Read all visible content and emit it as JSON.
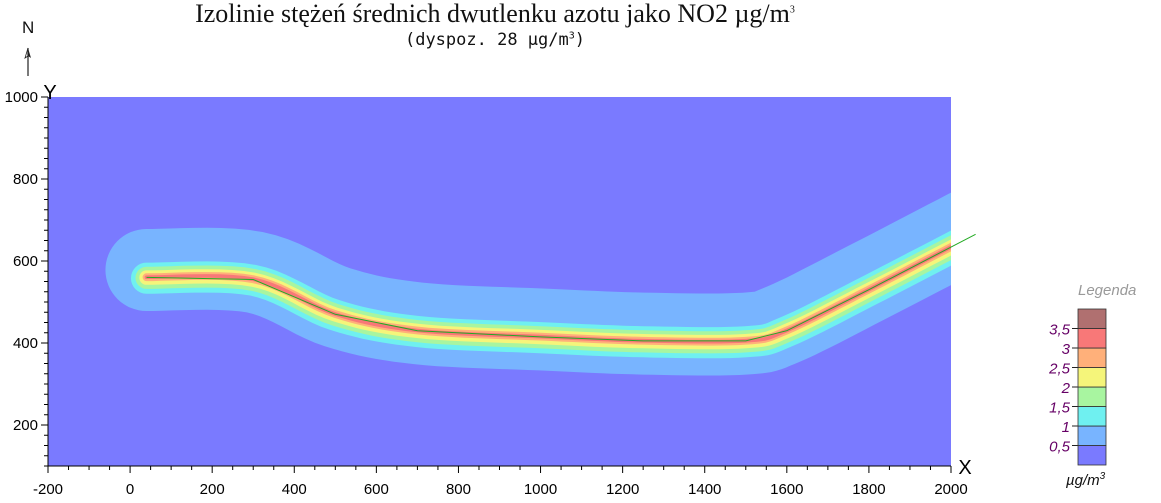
{
  "title": "Izolinie stężeń średnich dwutlenku azotu jako NO2 µg/m",
  "title_sup": "3",
  "subtitle": "(dyspoz. 28 µg/m",
  "subtitle_sup": "3",
  "subtitle_end": ")",
  "north_label": "N",
  "legend": {
    "title": "Legenda",
    "unit": "µg/m",
    "unit_sup": "3",
    "levels": [
      {
        "label": "0,5",
        "color": "#7a7aff"
      },
      {
        "label": "1",
        "color": "#78b4ff"
      },
      {
        "label": "1,5",
        "color": "#6ff0f0"
      },
      {
        "label": "2",
        "color": "#a8f5a0"
      },
      {
        "label": "2,5",
        "color": "#f5f57a"
      },
      {
        "label": "3",
        "color": "#ffb07a"
      },
      {
        "label": "3,5",
        "color": "#f87878"
      },
      {
        "label": "",
        "color": "#b07070"
      }
    ],
    "label_color": "#660066"
  },
  "chart_data": {
    "type": "heatmap",
    "title": "Izolinie stężeń średnich dwutlenku azotu jako NO2 µg/m³",
    "subtitle": "(dyspoz. 28 µg/m³)",
    "xlabel": "X",
    "ylabel": "Y",
    "xlim": [
      -200,
      2000
    ],
    "ylim": [
      100,
      1000
    ],
    "x_ticks": [
      "-200",
      "0",
      "200",
      "400",
      "600",
      "800",
      "1000",
      "1200",
      "1400",
      "1600",
      "1800",
      "2000"
    ],
    "y_ticks": [
      "200",
      "400",
      "600",
      "800",
      "1000"
    ],
    "background_color": "#7a7aff",
    "road_axis": [
      [
        40,
        560
      ],
      [
        300,
        555
      ],
      [
        500,
        470
      ],
      [
        700,
        430
      ],
      [
        1000,
        415
      ],
      [
        1250,
        405
      ],
      [
        1500,
        405
      ],
      [
        1600,
        430
      ],
      [
        1800,
        530
      ],
      [
        2060,
        665
      ]
    ],
    "contours": [
      {
        "level": "0,5",
        "color": "#78b4ff",
        "half_width_above": 118,
        "half_width_below": 82
      },
      {
        "level": "1,5",
        "color": "#6ff0f0",
        "half_width_above": 36,
        "half_width_below": 40
      },
      {
        "level": "2",
        "color": "#a8f5a0",
        "half_width_above": 26,
        "half_width_below": 28
      },
      {
        "level": "2,5",
        "color": "#f5f57a",
        "half_width_above": 17,
        "half_width_below": 18
      },
      {
        "level": "3",
        "color": "#ffb07a",
        "half_width_above": 10,
        "half_width_below": 9
      },
      {
        "level": "3,5",
        "color": "#f87878",
        "half_width_above": 5,
        "half_width_below": 4
      }
    ],
    "road_color": "#22aa22"
  }
}
